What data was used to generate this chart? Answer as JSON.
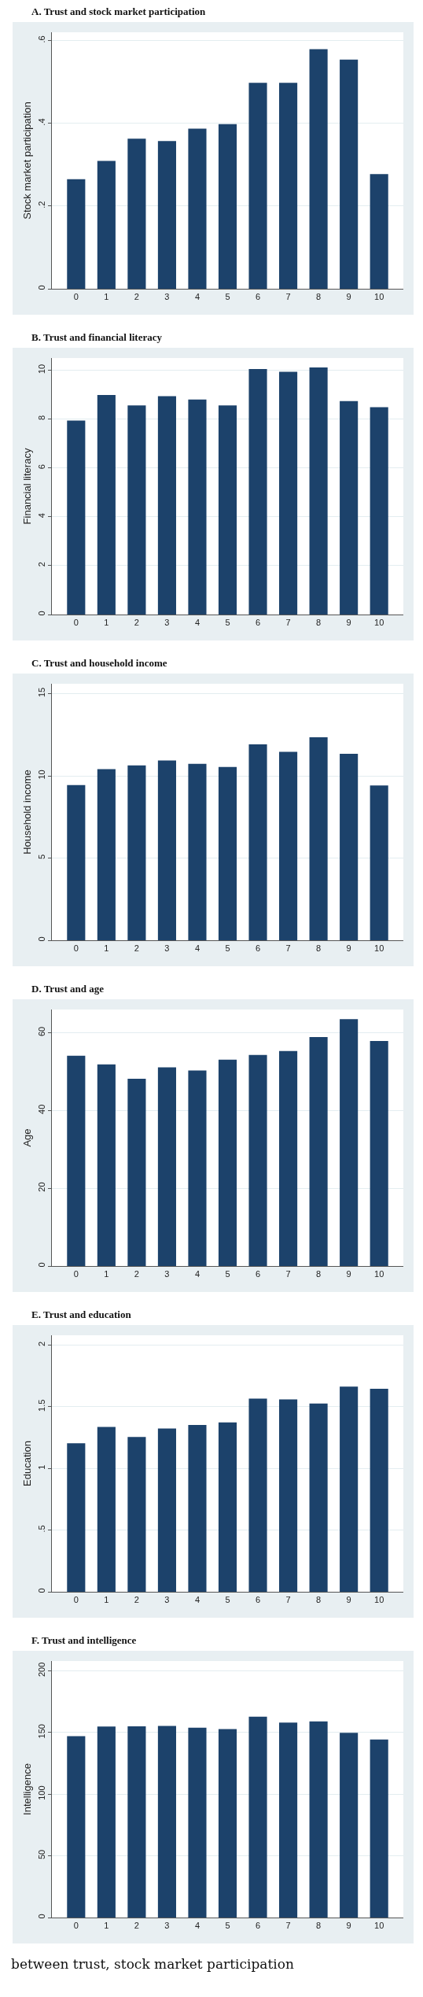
{
  "chart_data": [
    {
      "type": "bar",
      "title": "A.  Trust and stock market participation",
      "ylabel": "Stock market participation",
      "categories": [
        "0",
        "1",
        "2",
        "3",
        "4",
        "5",
        "6",
        "7",
        "8",
        "9",
        "10"
      ],
      "values": [
        0.265,
        0.309,
        0.363,
        0.357,
        0.387,
        0.398,
        0.498,
        0.498,
        0.579,
        0.554,
        0.277
      ],
      "color": "#1c426b",
      "ylim": [
        0,
        0.62
      ],
      "yticks": [
        0,
        {
          "value": 0.2,
          "label": ".2"
        },
        {
          "value": 0.4,
          "label": ".4"
        },
        {
          "value": 0.6,
          "label": ".6"
        }
      ],
      "grid": "y"
    },
    {
      "type": "bar",
      "title": "B.  Trust and financial literacy",
      "ylabel": "Financial literacy",
      "categories": [
        "0",
        "1",
        "2",
        "3",
        "4",
        "5",
        "6",
        "7",
        "8",
        "9",
        "10"
      ],
      "values": [
        7.94,
        8.99,
        8.56,
        8.94,
        8.8,
        8.56,
        10.05,
        9.94,
        10.11,
        8.74,
        8.49
      ],
      "color": "#1c426b",
      "ylim": [
        0,
        10.5
      ],
      "yticks": [
        0,
        2,
        4,
        6,
        8,
        10
      ],
      "grid": "y"
    },
    {
      "type": "bar",
      "title": "C.  Trust and household income",
      "ylabel": "Household income",
      "categories": [
        "0",
        "1",
        "2",
        "3",
        "4",
        "5",
        "6",
        "7",
        "8",
        "9",
        "10"
      ],
      "values": [
        9.44,
        10.41,
        10.64,
        10.94,
        10.73,
        10.54,
        11.91,
        11.46,
        12.35,
        11.34,
        9.42
      ],
      "color": "#1c426b",
      "ylim": [
        0,
        15.6
      ],
      "yticks": [
        0,
        5,
        10,
        15
      ],
      "grid": "y"
    },
    {
      "type": "bar",
      "title": "D.  Trust and age",
      "ylabel": "Age",
      "categories": [
        "0",
        "1",
        "2",
        "3",
        "4",
        "5",
        "6",
        "7",
        "8",
        "9",
        "10"
      ],
      "values": [
        54.1,
        51.9,
        48.2,
        51.1,
        50.3,
        53.1,
        54.3,
        55.3,
        58.9,
        63.5,
        57.9
      ],
      "color": "#1c426b",
      "ylim": [
        0,
        66
      ],
      "yticks": [
        0,
        20,
        40,
        60
      ],
      "grid": "y"
    },
    {
      "type": "bar",
      "title": "E.  Trust and education",
      "ylabel": "Education",
      "categories": [
        "0",
        "1",
        "2",
        "3",
        "4",
        "5",
        "6",
        "7",
        "8",
        "9",
        "10"
      ],
      "values": [
        1.204,
        1.337,
        1.255,
        1.324,
        1.353,
        1.373,
        1.566,
        1.56,
        1.526,
        1.664,
        1.646
      ],
      "color": "#1c426b",
      "ylim": [
        0,
        2.08
      ],
      "yticks": [
        0,
        {
          "value": 0.5,
          "label": ".5"
        },
        1,
        1.5,
        2
      ],
      "grid": "y"
    },
    {
      "type": "bar",
      "title": "F.  Trust and intelligence",
      "ylabel": "Intelligence",
      "categories": [
        "0",
        "1",
        "2",
        "3",
        "4",
        "5",
        "6",
        "7",
        "8",
        "9",
        "10"
      ],
      "values": [
        147.1,
        154.9,
        155.1,
        155.3,
        154,
        152.8,
        162.9,
        158,
        159.1,
        149.7,
        144.4
      ],
      "color": "#1c426b",
      "ylim": [
        0,
        208
      ],
      "yticks": [
        0,
        50,
        100,
        150,
        200
      ],
      "grid": "y",
      "annotations": [
        "between trust, stock market participation"
      ]
    }
  ]
}
